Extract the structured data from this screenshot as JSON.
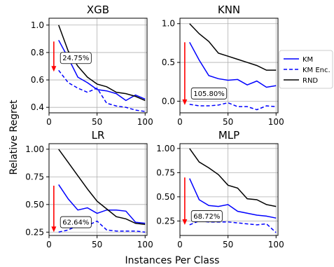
{
  "figure": {
    "shared_xlabel": "Instances Per Class",
    "shared_ylabel": "Relative Regret"
  },
  "legend": [
    {
      "name": "KM",
      "color": "#0000ff",
      "dash": "solid"
    },
    {
      "name": "KM Enc.",
      "color": "#0000ff",
      "dash": "dashed"
    },
    {
      "name": "RND",
      "color": "#000000",
      "dash": "solid"
    }
  ],
  "chart_data": [
    {
      "type": "line",
      "title": "XGB",
      "xlim": [
        0,
        102
      ],
      "ylim": [
        0.36,
        1.05
      ],
      "xticks": [
        0,
        50,
        100
      ],
      "yticks": [
        0.4,
        0.6,
        0.8,
        1.0
      ],
      "ytick_labels": [
        "0.4",
        "0.6",
        "0.8",
        "1.0"
      ],
      "grid": true,
      "x": [
        10,
        20,
        30,
        40,
        50,
        60,
        70,
        80,
        90,
        100
      ],
      "series": [
        {
          "name": "KM",
          "values": [
            0.89,
            0.76,
            0.62,
            0.58,
            0.53,
            0.52,
            0.5,
            0.45,
            0.49,
            0.46
          ]
        },
        {
          "name": "KM Enc.",
          "values": [
            0.67,
            0.58,
            0.54,
            0.51,
            0.54,
            0.43,
            0.41,
            0.4,
            0.38,
            0.37
          ]
        },
        {
          "name": "RND",
          "values": [
            1.0,
            0.81,
            0.7,
            0.62,
            0.57,
            0.55,
            0.51,
            0.5,
            0.48,
            0.45
          ]
        }
      ],
      "arrow": {
        "x": 5,
        "from": 0.88,
        "to": 0.66
      },
      "annotation": {
        "text": "24.75%",
        "x": 14,
        "y": 0.76
      }
    },
    {
      "type": "line",
      "title": "KNN",
      "xlim": [
        0,
        102
      ],
      "ylim": [
        -0.15,
        1.07
      ],
      "xticks": [
        0,
        50,
        100
      ],
      "yticks": [
        0.0,
        0.5,
        1.0
      ],
      "ytick_labels": [
        "0.0",
        "0.5",
        "1.0"
      ],
      "grid": true,
      "x": [
        10,
        20,
        30,
        40,
        50,
        60,
        70,
        80,
        90,
        100
      ],
      "series": [
        {
          "name": "KM",
          "values": [
            0.76,
            0.53,
            0.33,
            0.29,
            0.27,
            0.28,
            0.21,
            0.26,
            0.18,
            0.2
          ]
        },
        {
          "name": "KM Enc.",
          "values": [
            -0.04,
            -0.06,
            -0.06,
            -0.05,
            -0.02,
            -0.07,
            -0.07,
            -0.11,
            -0.06,
            -0.07
          ]
        },
        {
          "name": "RND",
          "values": [
            1.0,
            0.87,
            0.77,
            0.62,
            0.58,
            0.54,
            0.5,
            0.46,
            0.4,
            0.4
          ]
        }
      ],
      "arrow": {
        "x": 5,
        "from": 0.76,
        "to": -0.05
      },
      "annotation": {
        "text": "105.80%",
        "x": 14,
        "y": 0.1
      }
    },
    {
      "type": "line",
      "title": "LR",
      "xlim": [
        0,
        102
      ],
      "ylim": [
        0.22,
        1.05
      ],
      "xticks": [
        0,
        50,
        100
      ],
      "yticks": [
        0.25,
        0.5,
        0.75,
        1.0
      ],
      "ytick_labels": [
        "0.25",
        "0.50",
        "0.75",
        "1.00"
      ],
      "grid": true,
      "x": [
        10,
        20,
        30,
        40,
        50,
        60,
        70,
        80,
        90,
        100
      ],
      "series": [
        {
          "name": "KM",
          "values": [
            0.68,
            0.55,
            0.45,
            0.47,
            0.42,
            0.45,
            0.45,
            0.44,
            0.34,
            0.33
          ]
        },
        {
          "name": "KM Enc.",
          "values": [
            0.25,
            0.27,
            0.31,
            0.31,
            0.35,
            0.27,
            0.26,
            0.26,
            0.26,
            0.25
          ]
        },
        {
          "name": "RND",
          "values": [
            1.0,
            0.88,
            0.76,
            0.64,
            0.53,
            0.46,
            0.39,
            0.37,
            0.33,
            0.32
          ]
        }
      ],
      "arrow": {
        "x": 5,
        "from": 0.67,
        "to": 0.25
      },
      "annotation": {
        "text": "62.64%",
        "x": 14,
        "y": 0.34
      }
    },
    {
      "type": "line",
      "title": "MLP",
      "xlim": [
        0,
        102
      ],
      "ylim": [
        0.1,
        1.05
      ],
      "xticks": [
        0,
        50,
        100
      ],
      "yticks": [
        0.25,
        0.5,
        0.75,
        1.0
      ],
      "ytick_labels": [
        "0.25",
        "0.50",
        "0.75",
        "1.00"
      ],
      "grid": true,
      "x": [
        10,
        20,
        30,
        40,
        50,
        60,
        70,
        80,
        90,
        100
      ],
      "series": [
        {
          "name": "KM",
          "values": [
            0.69,
            0.47,
            0.41,
            0.4,
            0.42,
            0.35,
            0.33,
            0.31,
            0.3,
            0.28
          ]
        },
        {
          "name": "KM Enc.",
          "values": [
            0.21,
            0.25,
            0.24,
            0.24,
            0.24,
            0.23,
            0.22,
            0.21,
            0.22,
            0.13
          ]
        },
        {
          "name": "RND",
          "values": [
            1.0,
            0.86,
            0.8,
            0.73,
            0.62,
            0.59,
            0.48,
            0.47,
            0.42,
            0.4
          ]
        }
      ],
      "arrow": {
        "x": 5,
        "from": 0.7,
        "to": 0.21
      },
      "annotation": {
        "text": "68.72%",
        "x": 14,
        "y": 0.3
      }
    }
  ]
}
